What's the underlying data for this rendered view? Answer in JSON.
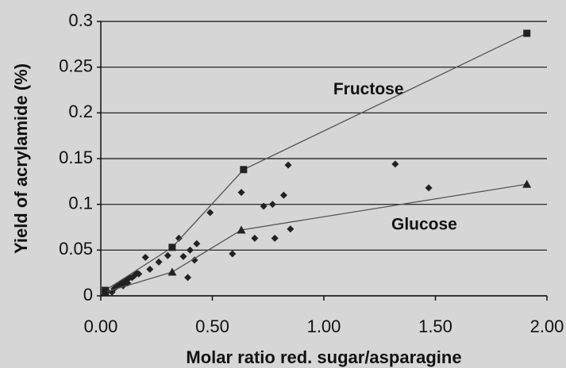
{
  "chart_data": {
    "type": "scatter",
    "xlabel": "Molar ratio red. sugar/asparagine",
    "ylabel": "Yield of acrylamide (%)",
    "annotations": [
      {
        "text": "Fructose",
        "x": 1.2,
        "y": 0.225
      },
      {
        "text": "Glucose",
        "x": 1.45,
        "y": 0.077
      }
    ],
    "xlim": [
      0,
      2
    ],
    "ylim": [
      0,
      0.3
    ],
    "xticks": [
      {
        "value": 0,
        "label": "0.00"
      },
      {
        "value": 0.5,
        "label": "0.50"
      },
      {
        "value": 1,
        "label": "1.00"
      },
      {
        "value": 1.5,
        "label": "1.50"
      },
      {
        "value": 2,
        "label": "2.00"
      }
    ],
    "yticks": [
      0,
      0.05,
      0.1,
      0.15,
      0.2,
      0.25,
      0.3
    ],
    "grid": true,
    "series": [
      {
        "color": "#222222",
        "marker": "diamond",
        "line": false,
        "x": [
          0.03,
          0.05,
          0.06,
          0.07,
          0.08,
          0.09,
          0.1,
          0.1,
          0.11,
          0.12,
          0.12,
          0.13,
          0.14,
          0.15,
          0.16,
          0.17,
          0.2,
          0.22,
          0.26,
          0.3,
          0.35,
          0.37,
          0.39,
          0.4,
          0.42,
          0.43,
          0.49,
          0.59,
          0.63,
          0.69,
          0.73,
          0.77,
          0.78,
          0.82,
          0.84,
          0.85,
          1.32,
          1.47
        ],
        "values": [
          0.005,
          0.004,
          0.008,
          0.01,
          0.012,
          0.013,
          0.015,
          0.011,
          0.016,
          0.018,
          0.014,
          0.02,
          0.02,
          0.022,
          0.025,
          0.024,
          0.042,
          0.029,
          0.037,
          0.044,
          0.063,
          0.043,
          0.02,
          0.05,
          0.039,
          0.057,
          0.091,
          0.046,
          0.113,
          0.063,
          0.098,
          0.1,
          0.063,
          0.11,
          0.143,
          0.073,
          0.144,
          0.118
        ]
      },
      {
        "color": "#222222",
        "marker": "square",
        "line": true,
        "x": [
          0.02,
          0.32,
          0.64,
          1.91
        ],
        "values": [
          0.006,
          0.053,
          0.138,
          0.287
        ]
      },
      {
        "color": "#222222",
        "marker": "triangle",
        "line": true,
        "x": [
          0.02,
          0.32,
          0.63,
          1.91
        ],
        "values": [
          0.004,
          0.026,
          0.072,
          0.122
        ]
      }
    ]
  }
}
